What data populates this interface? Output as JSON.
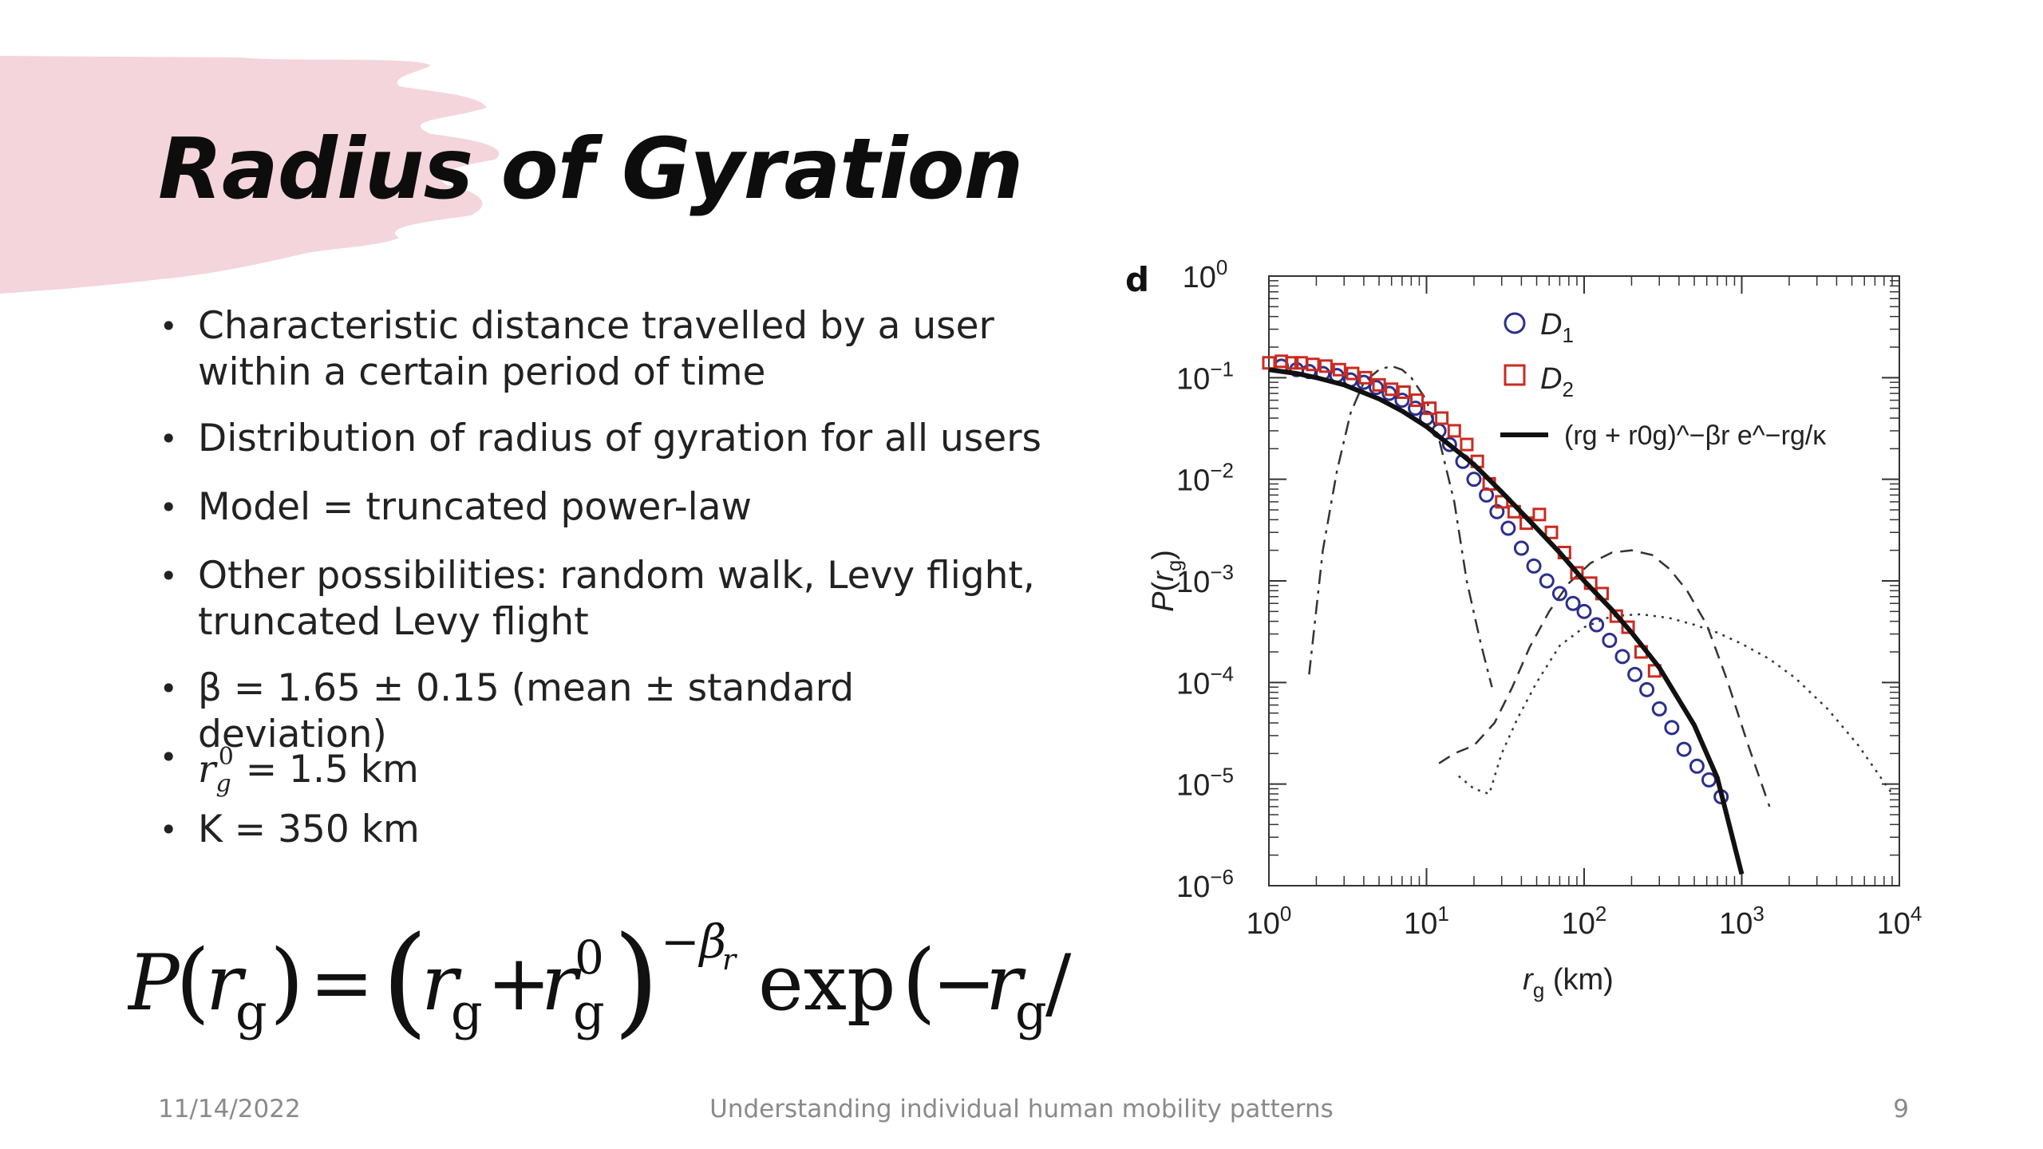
{
  "slide": {
    "title": "Radius of Gyration",
    "bullets": [
      "Characteristic distance travelled by a user within a certain period of time",
      "Distribution of radius of gyration for all users",
      "Model = truncated power-law",
      "Other possibilities: random walk, Levy flight, truncated Levy flight",
      "β = 1.65 ± 0.15 (mean ± standard deviation)",
      " = 1.5 km",
      "K = 350 km"
    ],
    "rg0_symbol": {
      "base": "r",
      "sub": "g",
      "sup": "0"
    },
    "formula": {
      "lhs": "P(rg)",
      "equals": "=",
      "base": "(rg + r0g)",
      "exponent": "−βr",
      "tail": "exp(− rg / κ)"
    },
    "footer": {
      "date": "11/14/2022",
      "center": "Understanding individual human mobility patterns",
      "page": "9"
    }
  },
  "colors": {
    "brush": "#f4d5dc",
    "d1_marker": "#2b2f8c",
    "d2_marker": "#cc2a20",
    "fit_line": "#111111",
    "footer_text": "#8a8a8a"
  },
  "chart_data": {
    "type": "scatter",
    "panel_label": "d",
    "xlabel": "rg (km)",
    "ylabel": "P(rg)",
    "x_scale": "log",
    "y_scale": "log",
    "xlim": [
      1,
      10000
    ],
    "ylim": [
      1e-06,
      1
    ],
    "x_ticks": [
      "10^0",
      "10^1",
      "10^2",
      "10^3",
      "10^4"
    ],
    "y_ticks": [
      "10^0",
      "10^-1",
      "10^-2",
      "10^-3",
      "10^-4",
      "10^-5",
      "10^-6"
    ],
    "legend": {
      "placement": "top-right",
      "entries": [
        "D1",
        "D2",
        "(rg + r0g)^−βr e^−rg/κ"
      ]
    },
    "series": [
      {
        "name": "D1",
        "marker": "circle-open",
        "x": [
          1.2,
          1.5,
          1.8,
          2.2,
          2.7,
          3.3,
          4.0,
          4.8,
          5.8,
          7.0,
          8.5,
          10,
          12,
          14,
          17,
          20,
          24,
          28,
          33,
          40,
          48,
          58,
          70,
          85,
          100,
          120,
          145,
          175,
          210,
          250,
          300,
          360,
          430,
          520,
          620,
          740
        ],
        "y": [
          0.13,
          0.12,
          0.115,
          0.11,
          0.105,
          0.095,
          0.09,
          0.08,
          0.07,
          0.06,
          0.05,
          0.04,
          0.03,
          0.022,
          0.015,
          0.01,
          0.007,
          0.0048,
          0.0033,
          0.0021,
          0.0014,
          0.001,
          0.00075,
          0.0006,
          0.0005,
          0.00037,
          0.00026,
          0.00018,
          0.00012,
          8.5e-05,
          5.5e-05,
          3.6e-05,
          2.2e-05,
          1.5e-05,
          1.1e-05,
          7.5e-06
        ]
      },
      {
        "name": "D2",
        "marker": "square-open",
        "x": [
          1.0,
          1.2,
          1.4,
          1.6,
          1.9,
          2.3,
          2.8,
          3.4,
          4.1,
          5.0,
          6.0,
          7.2,
          8.7,
          10.5,
          12.5,
          15,
          18,
          21,
          25,
          30,
          36,
          43,
          52,
          62,
          75,
          90,
          110,
          130,
          160,
          190,
          230,
          280
        ],
        "y": [
          0.14,
          0.145,
          0.14,
          0.14,
          0.135,
          0.13,
          0.12,
          0.11,
          0.1,
          0.085,
          0.077,
          0.072,
          0.06,
          0.05,
          0.04,
          0.03,
          0.022,
          0.015,
          0.009,
          0.006,
          0.0048,
          0.0037,
          0.0045,
          0.003,
          0.0019,
          0.0012,
          0.00095,
          0.00075,
          0.00045,
          0.00035,
          0.0002,
          0.00013
        ]
      },
      {
        "name": "(rg + r0g)^−βr e^−rg/κ",
        "style": "solid",
        "x": [
          1,
          1.5,
          2,
          3,
          5,
          7,
          10,
          15,
          20,
          30,
          50,
          70,
          100,
          150,
          200,
          300,
          500,
          700,
          1000
        ],
        "y": [
          0.12,
          0.11,
          0.1,
          0.085,
          0.062,
          0.047,
          0.033,
          0.02,
          0.014,
          0.0075,
          0.0033,
          0.0019,
          0.001,
          0.00052,
          0.00031,
          0.00014,
          3.8e-05,
          1.15e-05,
          1.3e-06
        ]
      },
      {
        "name": "",
        "style": "dash-dot",
        "x": [
          1.8,
          2.2,
          2.7,
          3.3,
          4,
          5,
          6,
          7,
          8,
          10,
          12,
          15,
          18,
          22,
          26
        ],
        "y": [
          0.00012,
          0.002,
          0.012,
          0.045,
          0.09,
          0.12,
          0.13,
          0.12,
          0.1,
          0.06,
          0.025,
          0.006,
          0.001,
          0.00025,
          9e-05
        ]
      },
      {
        "name": "",
        "style": "dashed",
        "x": [
          12,
          15,
          20,
          27,
          35,
          45,
          60,
          80,
          110,
          150,
          200,
          270,
          350,
          450,
          600,
          800,
          1100,
          1500
        ],
        "y": [
          1.6e-05,
          2e-05,
          2.4e-05,
          4e-05,
          9e-05,
          0.00022,
          0.0005,
          0.00095,
          0.0015,
          0.0019,
          0.002,
          0.0018,
          0.0013,
          0.0008,
          0.00037,
          0.00011,
          2.4e-05,
          6e-06
        ]
      },
      {
        "name": "",
        "style": "dotted",
        "x": [
          16,
          20,
          25,
          30,
          38,
          50,
          70,
          100,
          150,
          230,
          350,
          500,
          700,
          1000,
          1500,
          2200,
          3500,
          5500,
          9000
        ],
        "y": [
          1.2e-05,
          9e-06,
          8e-06,
          2e-05,
          4.5e-05,
          0.0001,
          0.00023,
          0.00035,
          0.00045,
          0.00047,
          0.00043,
          0.00037,
          0.00031,
          0.00024,
          0.00017,
          0.00011,
          5.5e-05,
          2.4e-05,
          8e-06
        ]
      }
    ]
  }
}
